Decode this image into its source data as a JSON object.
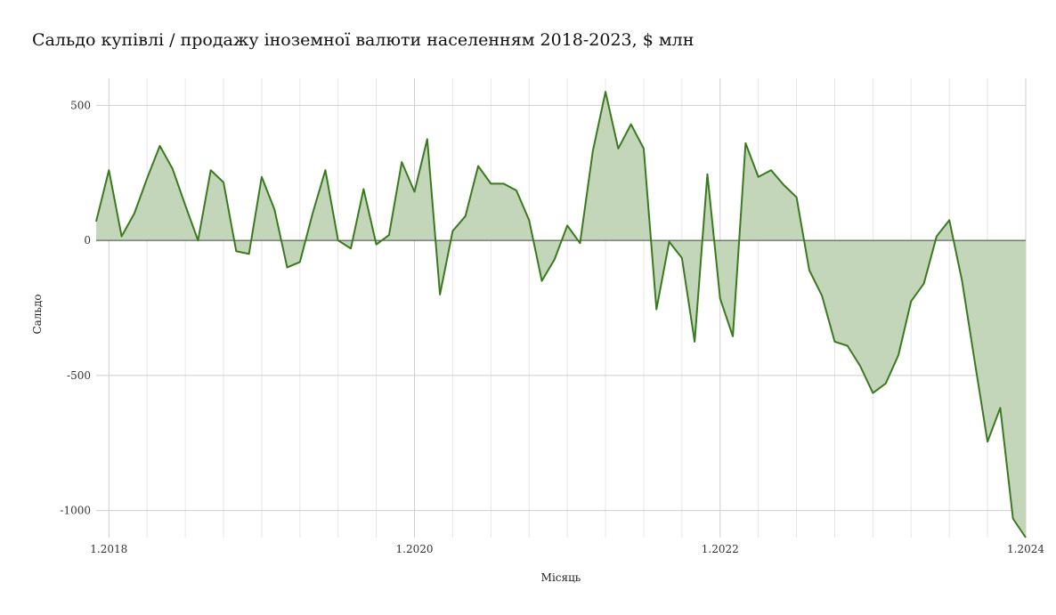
{
  "chart_data": {
    "type": "area",
    "title": "Сальдо купівлі / продажу іноземної валюти населенням 2018-2023, $ млн",
    "xlabel": "Місяць",
    "ylabel": "Сальдо",
    "ylim": [
      -1100,
      600
    ],
    "xlim": [
      "2017-12-01",
      "2024-01-01"
    ],
    "y_ticks": [
      500,
      0,
      -500,
      -1000
    ],
    "y_tick_labels": [
      "500",
      "0",
      "-500",
      "-1000"
    ],
    "x_ticks": [
      "2018-01-01",
      "2020-01-01",
      "2022-01-01",
      "2024-01-01"
    ],
    "x_tick_labels": [
      "1.2018",
      "1.2020",
      "1.2022",
      "1.2024"
    ],
    "grid": true,
    "legend": "none",
    "colors": {
      "line": "#3a7a1e",
      "fill": "#c3d6b9",
      "zero_line": "#3b4a3b",
      "grid_major": "#cfcfcf",
      "grid_minor": "#e6e6e6"
    },
    "x": [
      "2017-12",
      "2018-01",
      "2018-02",
      "2018-03",
      "2018-04",
      "2018-05",
      "2018-06",
      "2018-07",
      "2018-08",
      "2018-09",
      "2018-10",
      "2018-11",
      "2018-12",
      "2019-01",
      "2019-02",
      "2019-03",
      "2019-04",
      "2019-05",
      "2019-06",
      "2019-07",
      "2019-08",
      "2019-09",
      "2019-10",
      "2019-11",
      "2019-12",
      "2020-01",
      "2020-02",
      "2020-03",
      "2020-04",
      "2020-05",
      "2020-06",
      "2020-07",
      "2020-08",
      "2020-09",
      "2020-10",
      "2020-11",
      "2020-12",
      "2021-01",
      "2021-02",
      "2021-03",
      "2021-04",
      "2021-05",
      "2021-06",
      "2021-07",
      "2021-08",
      "2021-09",
      "2021-10",
      "2021-11",
      "2021-12",
      "2022-01",
      "2022-02",
      "2022-03",
      "2022-04",
      "2022-05",
      "2022-06",
      "2022-07",
      "2022-08",
      "2022-09",
      "2022-10",
      "2022-11",
      "2022-12",
      "2023-01",
      "2023-02",
      "2023-03",
      "2023-04",
      "2023-05",
      "2023-06",
      "2023-07",
      "2023-08",
      "2023-09",
      "2023-10",
      "2023-11",
      "2023-12",
      "2024-01"
    ],
    "values": [
      70,
      260,
      15,
      100,
      230,
      350,
      265,
      130,
      0,
      260,
      215,
      -40,
      -50,
      235,
      115,
      -100,
      -80,
      100,
      260,
      0,
      -30,
      190,
      -15,
      20,
      290,
      180,
      375,
      -200,
      35,
      90,
      275,
      210,
      210,
      185,
      75,
      -150,
      -70,
      55,
      -10,
      330,
      550,
      340,
      430,
      340,
      -255,
      -5,
      -65,
      -375,
      245,
      -215,
      -355,
      360,
      235,
      260,
      205,
      160,
      -110,
      -205,
      -375,
      -390,
      -465,
      -565,
      -530,
      -425,
      -225,
      -160,
      15,
      75,
      -150,
      -450,
      -745,
      -620,
      -1030,
      -1100
    ]
  }
}
